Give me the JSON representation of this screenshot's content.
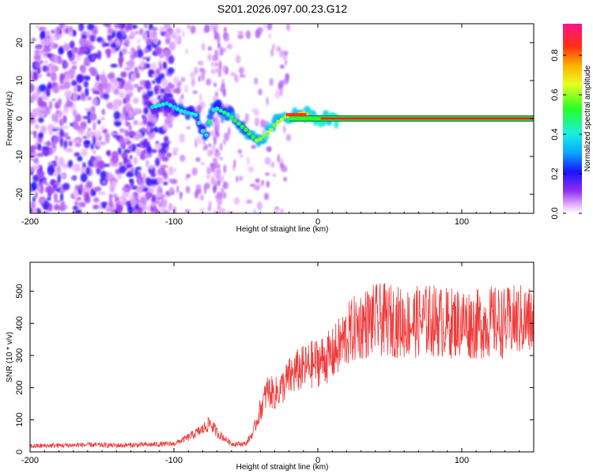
{
  "chart_data": [
    {
      "type": "heatmap",
      "title": "S201.2026.097.00.23.G12",
      "xlabel": "Height of straight line (km)",
      "ylabel": "Frequency (Hz)",
      "xlim": [
        -200,
        150
      ],
      "ylim": [
        -25,
        25
      ],
      "x_ticks": [
        -200,
        -100,
        0,
        100
      ],
      "y_ticks": [
        -20,
        -10,
        0,
        10,
        20
      ],
      "colorbar": {
        "label": "Normalized spectral amplitude",
        "range": [
          0,
          0.96
        ],
        "ticks": [
          0.0,
          0.2,
          0.4,
          0.6,
          0.8
        ]
      },
      "ridge": {
        "x": [
          -115,
          -105,
          -95,
          -85,
          -78,
          -72,
          -62,
          -50,
          -42,
          -35,
          -28,
          -22,
          -15,
          -10,
          -5,
          0,
          5,
          150
        ],
        "y": [
          3,
          4,
          2,
          1,
          -5,
          3,
          1,
          -3,
          -6,
          -4,
          -1,
          0.5,
          1,
          1.5,
          0.5,
          0,
          0,
          0
        ]
      }
    },
    {
      "type": "line",
      "title": "",
      "xlabel": "Height of straight line (km)",
      "ylabel": "SNR (10 * v/v)",
      "xlim": [
        -200,
        150
      ],
      "ylim": [
        0,
        590
      ],
      "x_ticks": [
        -200,
        -100,
        0,
        100
      ],
      "y_ticks": [
        0,
        100,
        200,
        300,
        400,
        500
      ],
      "series": [
        {
          "name": "SNR",
          "color": "#f03a3a",
          "x": [
            -200,
            -180,
            -160,
            -140,
            -120,
            -100,
            -90,
            -80,
            -75,
            -70,
            -60,
            -50,
            -45,
            -40,
            -35,
            -30,
            -25,
            -20,
            -15,
            -10,
            -5,
            0,
            5,
            10,
            15,
            20,
            25,
            30,
            40,
            50,
            60,
            70,
            80,
            90,
            100,
            110,
            120,
            130,
            140,
            150
          ],
          "y": [
            18,
            20,
            22,
            20,
            22,
            25,
            45,
            70,
            90,
            60,
            25,
            25,
            60,
            130,
            190,
            180,
            200,
            230,
            250,
            260,
            270,
            280,
            290,
            300,
            330,
            360,
            380,
            395,
            410,
            410,
            400,
            405,
            410,
            400,
            405,
            395,
            405,
            400,
            410,
            405
          ]
        }
      ]
    }
  ]
}
